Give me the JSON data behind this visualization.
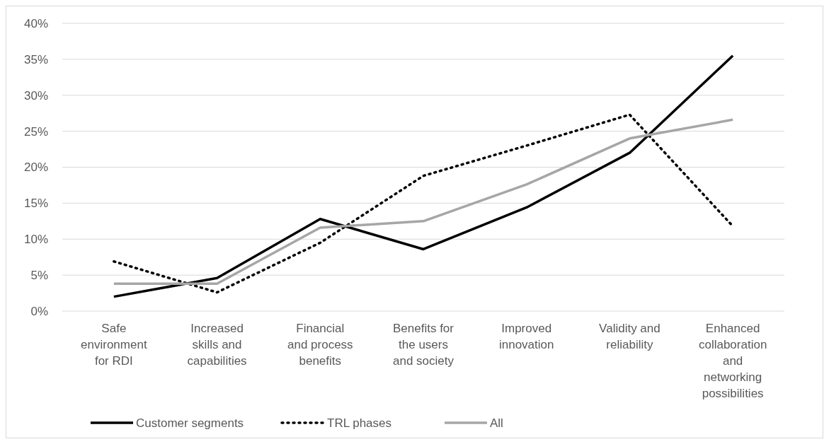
{
  "chart_data": {
    "type": "line",
    "categories": [
      "Safe environment for RDI",
      "Increased skills and capabilities",
      "Financial and process benefits",
      "Benefits for the users and society",
      "Improved innovation",
      "Validity and reliability",
      "Enhanced collaboration and networking possibilities"
    ],
    "series": [
      {
        "name": "Customer segments",
        "color": "#000000",
        "line_style": "solid",
        "values": [
          2.0,
          4.6,
          12.8,
          8.6,
          14.4,
          22.0,
          35.5
        ]
      },
      {
        "name": "TRL phases",
        "color": "#000000",
        "line_style": "dotted",
        "values": [
          6.9,
          2.6,
          9.5,
          18.8,
          23.0,
          27.3,
          11.8
        ]
      },
      {
        "name": "All",
        "color": "#a6a6a6",
        "line_style": "solid",
        "values": [
          3.8,
          3.8,
          11.6,
          12.5,
          17.6,
          24.0,
          26.6
        ]
      }
    ],
    "ylim": [
      0,
      40
    ],
    "yticks": [
      {
        "value": 0,
        "label": "0%"
      },
      {
        "value": 5,
        "label": "5%"
      },
      {
        "value": 10,
        "label": "10%"
      },
      {
        "value": 15,
        "label": "15%"
      },
      {
        "value": 20,
        "label": "20%"
      },
      {
        "value": 25,
        "label": "25%"
      },
      {
        "value": 30,
        "label": "30%"
      },
      {
        "value": 35,
        "label": "35%"
      },
      {
        "value": 40,
        "label": "40%"
      }
    ],
    "grid": "y",
    "legend": "bottom left"
  }
}
